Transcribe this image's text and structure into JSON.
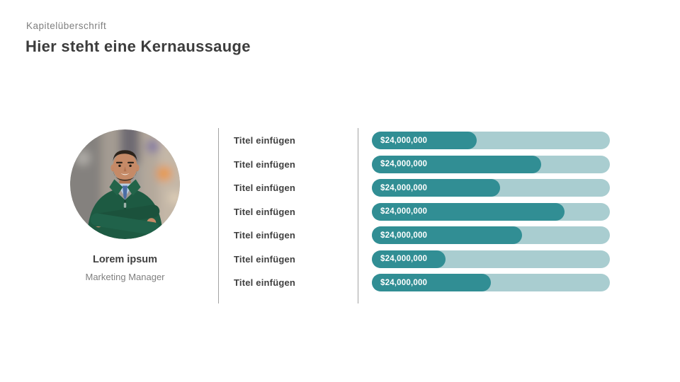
{
  "slide": {
    "subtitle": "Kapitelüberschrift",
    "title": "Hier steht eine Kernaussauge"
  },
  "profile": {
    "name": "Lorem ipsum",
    "role": "Marketing Manager",
    "photo_description": "man-in-green-sweater-arms-crossed"
  },
  "chart_data": {
    "type": "bar",
    "orientation": "horizontal",
    "title": "",
    "xlabel": "",
    "ylabel": "",
    "categories": [
      "Titel einfügen",
      "Titel einfügen",
      "Titel einfügen",
      "Titel einfügen",
      "Titel einfügen",
      "Titel einfügen",
      "Titel einfügen"
    ],
    "values": [
      44,
      71,
      54,
      81,
      63,
      31,
      50
    ],
    "value_unit": "percent_of_track",
    "value_labels": [
      "$24,000,000",
      "$24,000,000",
      "$24,000,000",
      "$24,000,000",
      "$24,000,000",
      "$24,000,000",
      "$24,000,000"
    ],
    "xlim": [
      0,
      100
    ],
    "grid": false,
    "legend": false,
    "colors": {
      "bar_fill": "#318e94",
      "bar_track": "#a9cdd0"
    }
  }
}
